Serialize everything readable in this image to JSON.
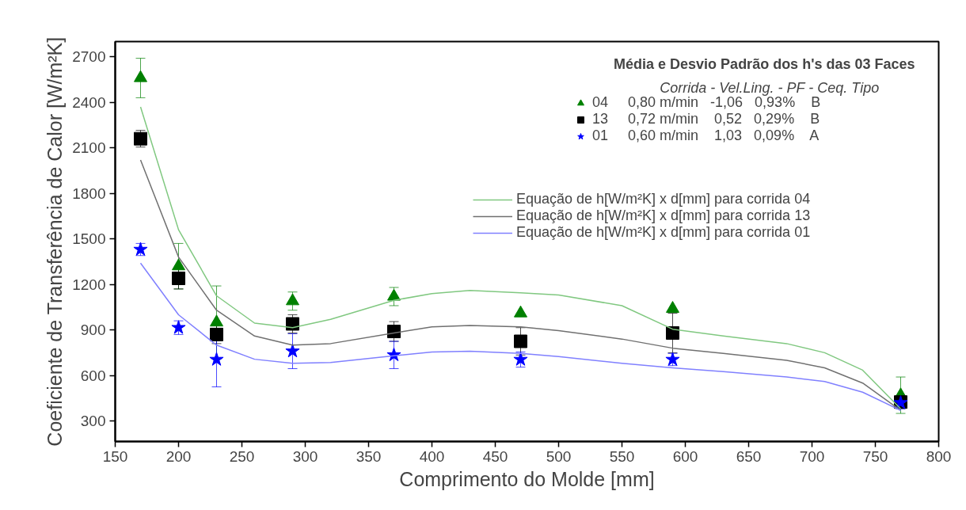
{
  "chart_data": {
    "type": "scatter",
    "xlabel": "Comprimento do Molde [mm]",
    "ylabel": "Coeficiente de Transferência de Calor [W/m²K]",
    "legend_title": "Média e Desvio Padrão dos h's das 03 Faces",
    "annotations": [
      "Corrida -  Vel.Ling.  -  PF  -  Ceq.  Tipo"
    ],
    "x": [
      170,
      200,
      230,
      290,
      370,
      470,
      590,
      770
    ],
    "xlim": [
      150,
      800
    ],
    "xticks": [
      150,
      200,
      250,
      300,
      350,
      400,
      450,
      500,
      550,
      600,
      650,
      700,
      750,
      800
    ],
    "ylim": [
      165,
      2800
    ],
    "yticks": [
      300,
      600,
      900,
      1200,
      1500,
      1800,
      2100,
      2400,
      2700
    ],
    "grid": false,
    "legend": "top right",
    "series": [
      {
        "name": "04     0,80 m/min   -1,06   0,93%    B",
        "marker": "triangle",
        "color": "#008000",
        "values": [
          2560,
          1320,
          950,
          1090,
          1120,
          1010,
          1040,
          470
        ],
        "errors": [
          130,
          150,
          240,
          60,
          60,
          null,
          null,
          120
        ]
      },
      {
        "name": "13     0,72 m/min    0,52   0,29%    B",
        "marker": "square",
        "color": "#000000",
        "values": [
          2160,
          1240,
          870,
          940,
          890,
          825,
          880,
          425
        ],
        "errors": [
          55,
          70,
          60,
          60,
          65,
          90,
          130,
          40
        ]
      },
      {
        "name": "01     0,60 m/min    1,03   0,09%    A",
        "marker": "star",
        "color": "#0000ff",
        "values": [
          1430,
          915,
          705,
          760,
          735,
          705,
          705,
          420
        ],
        "errors": [
          40,
          45,
          180,
          115,
          90,
          50,
          40,
          40
        ]
      },
      {
        "name": "Equação de h[W/m²K] x d[mm] para corrida 04",
        "type": "line",
        "color": "#80c880",
        "x": [
          170,
          200,
          230,
          260,
          290,
          320,
          370,
          400,
          430,
          470,
          500,
          550,
          590,
          630,
          680,
          710,
          740,
          770
        ],
        "values": [
          2370,
          1560,
          1125,
          945,
          915,
          970,
          1095,
          1140,
          1160,
          1145,
          1130,
          1060,
          905,
          860,
          810,
          750,
          635,
          380
        ]
      },
      {
        "name": "Equação de h[W/m²K] x d[mm] para corrida 13",
        "type": "line",
        "color": "#707070",
        "x": [
          170,
          200,
          230,
          260,
          290,
          320,
          370,
          400,
          430,
          470,
          500,
          550,
          590,
          630,
          680,
          710,
          740,
          770
        ],
        "values": [
          2020,
          1380,
          1030,
          860,
          800,
          810,
          880,
          920,
          930,
          920,
          895,
          840,
          780,
          745,
          700,
          650,
          550,
          370
        ]
      },
      {
        "name": "Equação de h[W/m²K] x d[mm] para corrida 01",
        "type": "line",
        "color": "#8080ff",
        "x": [
          170,
          200,
          230,
          260,
          290,
          320,
          370,
          400,
          430,
          470,
          500,
          550,
          590,
          630,
          680,
          710,
          740,
          770
        ],
        "values": [
          1340,
          1000,
          800,
          707,
          680,
          685,
          730,
          755,
          760,
          745,
          725,
          680,
          650,
          625,
          590,
          560,
          490,
          370
        ]
      }
    ]
  }
}
